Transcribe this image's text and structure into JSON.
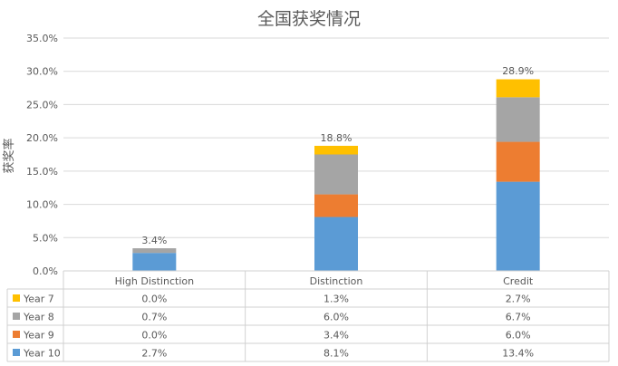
{
  "chart_data": {
    "type": "bar",
    "stacked": true,
    "title": "全国获奖情况",
    "ylabel": "获奖率",
    "xlabel": "",
    "ylim": [
      0,
      35
    ],
    "y_ticks": [
      "0.0%",
      "5.0%",
      "10.0%",
      "15.0%",
      "20.0%",
      "25.0%",
      "30.0%",
      "35.0%"
    ],
    "grid": true,
    "legend": "data-table-left",
    "categories": [
      "High Distinction",
      "Distinction",
      "Credit"
    ],
    "series": [
      {
        "name": "Year 10",
        "color": "#5b9bd5",
        "values": [
          2.7,
          8.1,
          13.4
        ],
        "labels": [
          "2.7%",
          "8.1%",
          "13.4%"
        ]
      },
      {
        "name": "Year 9",
        "color": "#ed7d31",
        "values": [
          0.0,
          3.4,
          6.0
        ],
        "labels": [
          "0.0%",
          "3.4%",
          "6.0%"
        ]
      },
      {
        "name": "Year 8",
        "color": "#a5a5a5",
        "values": [
          0.7,
          6.0,
          6.7
        ],
        "labels": [
          "0.7%",
          "6.0%",
          "6.7%"
        ]
      },
      {
        "name": "Year 7",
        "color": "#ffc000",
        "values": [
          0.0,
          1.3,
          2.7
        ],
        "labels": [
          "0.0%",
          "1.3%",
          "2.7%"
        ]
      }
    ],
    "totals": [
      3.4,
      18.8,
      28.9
    ],
    "total_labels": [
      "3.4%",
      "18.8%",
      "28.9%"
    ],
    "table_row_order": [
      "Year 7",
      "Year 8",
      "Year 9",
      "Year 10"
    ]
  }
}
